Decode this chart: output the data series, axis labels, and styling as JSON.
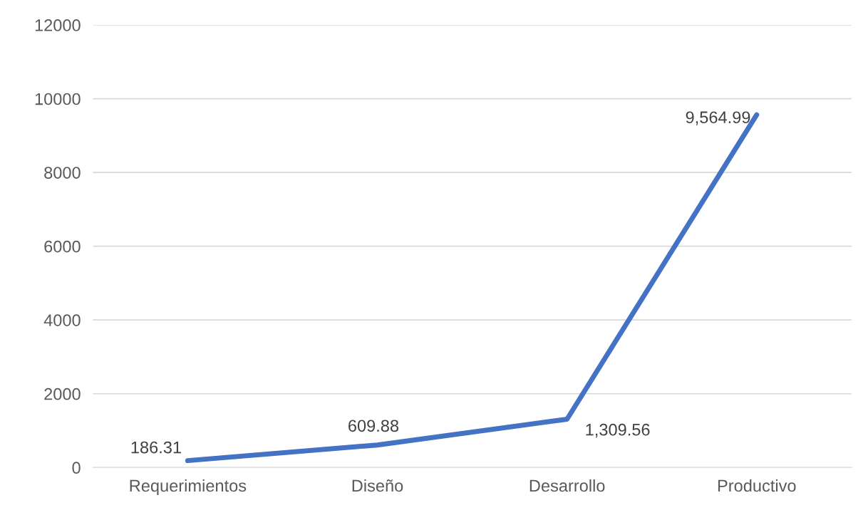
{
  "chart_data": {
    "type": "line",
    "categories": [
      "Requerimientos",
      "Diseño",
      "Desarrollo",
      "Productivo"
    ],
    "series": [
      {
        "color": "#4472c4",
        "values": [
          186.31,
          609.88,
          1309.56,
          9564.99
        ],
        "value_labels": [
          "186.31",
          "609.88",
          "1,309.56",
          "9,564.99"
        ]
      }
    ],
    "ylim": [
      0,
      12000
    ],
    "yticks": [
      0,
      2000,
      4000,
      6000,
      8000,
      10000,
      12000
    ],
    "grid": "y",
    "marker": "none",
    "line_style": "solid"
  }
}
